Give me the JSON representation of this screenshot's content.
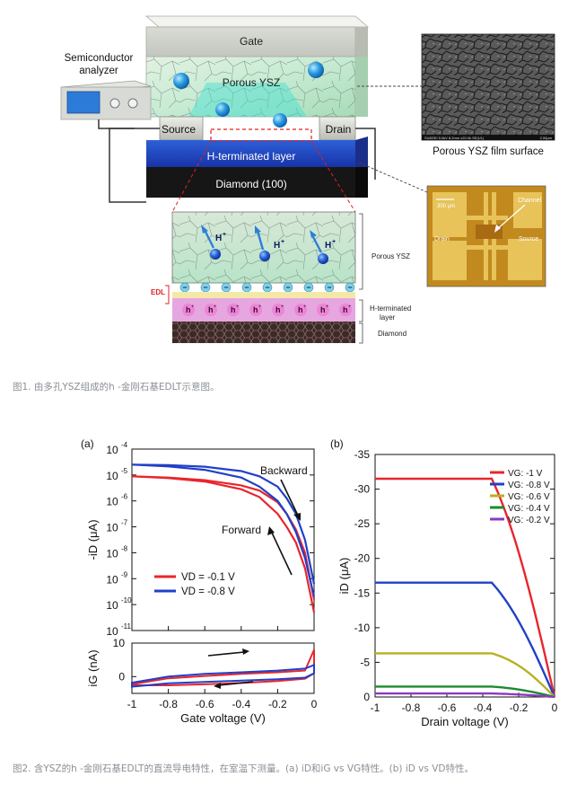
{
  "figure1": {
    "gate_label": "Gate",
    "porous_label": "Porous YSZ",
    "source_label": "Source",
    "drain_label": "Drain",
    "hlayer_label": "H-terminated layer",
    "diamond_label": "Diamond (100)",
    "analyzer_label_1": "Semiconductor",
    "analyzer_label_2": "analyzer",
    "sem_caption": "Porous YSZ film surface",
    "sem_footer_left": "SU8230 5.0kV 8.2mm x20.0k SE(UL)",
    "sem_footer_right": "2.00μm",
    "optical": {
      "scale": "300 μm",
      "channel": "Channel",
      "drain": "Drain",
      "source": "Source"
    },
    "zoom": {
      "h_plus": "H",
      "h_plus_sup": "+",
      "edl": "EDL",
      "minus": "−",
      "h_hole": "h",
      "h_hole_sup": "+",
      "right_porous": "Porous YSZ",
      "right_hlayer_1": "H-terminated",
      "right_hlayer_2": "layer",
      "right_diamond": "Diamond"
    }
  },
  "caption1": "图1. 由多孔YSZ组成的h -金刚石基EDLT示意图。",
  "caption2": "图2. 含YSZ的h -金刚石基EDLT的直流导电特性，在室温下测量。(a) iD和iG vs VG特性。(b) iD vs VD特性。",
  "chart_data": [
    {
      "panel": "(a)",
      "type": "line",
      "xlabel": "Gate voltage (V)",
      "ylabel": "-iD (μA)",
      "yscale": "log",
      "xlim": [
        -1,
        0
      ],
      "ylim_exponent": [
        -11,
        -4
      ],
      "x_ticks": [
        "-1",
        "-0.8",
        "-0.6",
        "-0.4",
        "-0.2",
        "0"
      ],
      "y_tick_exponents": [
        "-4",
        "-5",
        "-6",
        "-7",
        "-8",
        "-9",
        "-10",
        "-11"
      ],
      "annotations": [
        "Backward",
        "Forward"
      ],
      "series": [
        {
          "name": "VD = -0.1 V",
          "color": "#e8262c",
          "forward_x": [
            -1,
            -0.8,
            -0.6,
            -0.4,
            -0.3,
            -0.2,
            -0.15,
            -0.1,
            -0.05,
            0
          ],
          "forward_log": [
            -5.05,
            -5.12,
            -5.25,
            -5.55,
            -5.85,
            -6.5,
            -7.0,
            -7.6,
            -8.6,
            -10.3
          ],
          "backward_x": [
            -1,
            -0.8,
            -0.6,
            -0.4,
            -0.3,
            -0.2,
            -0.15,
            -0.1,
            -0.05,
            0
          ],
          "backward_log": [
            -5.05,
            -5.1,
            -5.2,
            -5.4,
            -5.6,
            -6.05,
            -6.5,
            -7.1,
            -8.0,
            -9.8
          ]
        },
        {
          "name": "VD = -0.8 V",
          "color": "#2140c8",
          "forward_x": [
            -1,
            -0.8,
            -0.6,
            -0.4,
            -0.3,
            -0.2,
            -0.15,
            -0.1,
            -0.05,
            0
          ],
          "forward_log": [
            -4.6,
            -4.67,
            -4.8,
            -5.1,
            -5.45,
            -6.0,
            -6.5,
            -7.2,
            -8.2,
            -9.7
          ],
          "backward_x": [
            -1,
            -0.8,
            -0.6,
            -0.4,
            -0.3,
            -0.2,
            -0.15,
            -0.1,
            -0.05,
            0
          ],
          "backward_log": [
            -4.6,
            -4.62,
            -4.68,
            -4.85,
            -5.05,
            -5.45,
            -5.9,
            -6.5,
            -7.5,
            -9.2
          ]
        }
      ],
      "legend": [
        "VD = -0.1 V",
        "VD = -0.8 V"
      ],
      "legend_position": "lower-left"
    },
    {
      "panel": "(a) lower",
      "type": "line",
      "xlabel": "Gate voltage (V)",
      "ylabel": "iG (nA)",
      "xlim": [
        -1,
        0
      ],
      "ylim": [
        -5,
        10
      ],
      "y_ticks": [
        "10",
        "0"
      ],
      "series": [
        {
          "name": "VD = -0.1 V",
          "color": "#e8262c",
          "upper": [
            [
              -1,
              -2.3
            ],
            [
              -0.8,
              -0.5
            ],
            [
              -0.6,
              0.2
            ],
            [
              -0.4,
              0.8
            ],
            [
              -0.2,
              1.3
            ],
            [
              -0.05,
              1.8
            ],
            [
              0,
              8
            ]
          ],
          "lower": [
            [
              -1,
              -2.6
            ],
            [
              -0.8,
              -2.6
            ],
            [
              -0.6,
              -2.3
            ],
            [
              -0.4,
              -1.9
            ],
            [
              -0.2,
              -1.3
            ],
            [
              -0.05,
              -0.6
            ],
            [
              0,
              1.0
            ]
          ]
        },
        {
          "name": "VD = -0.8 V",
          "color": "#2140c8",
          "upper": [
            [
              -1,
              -1.8
            ],
            [
              -0.8,
              0.0
            ],
            [
              -0.6,
              0.8
            ],
            [
              -0.4,
              1.3
            ],
            [
              -0.2,
              1.8
            ],
            [
              -0.05,
              2.4
            ],
            [
              0,
              3.5
            ]
          ],
          "lower": [
            [
              -1,
              -3.0
            ],
            [
              -0.8,
              -2.0
            ],
            [
              -0.6,
              -1.6
            ],
            [
              -0.4,
              -1.2
            ],
            [
              -0.2,
              -0.8
            ],
            [
              -0.05,
              -0.3
            ],
            [
              0,
              1.0
            ]
          ]
        }
      ]
    },
    {
      "panel": "(b)",
      "type": "line",
      "xlabel": "Drain voltage (V)",
      "ylabel": "iD (μA)",
      "xlim": [
        -1,
        0
      ],
      "ylim": [
        0,
        -35
      ],
      "x_ticks": [
        "-1",
        "-0.8",
        "-0.6",
        "-0.4",
        "-0.2",
        "0"
      ],
      "y_ticks": [
        "-35",
        "-30",
        "-25",
        "-20",
        "-15",
        "-10",
        "-5",
        "0"
      ],
      "legend_position": "top-right",
      "series": [
        {
          "name": "VG: -1 V",
          "color": "#e8262c",
          "sat": -31.5
        },
        {
          "name": "VG: -0.8 V",
          "color": "#2140c8",
          "sat": -16.5
        },
        {
          "name": "VG: -0.6 V",
          "color": "#b8b020",
          "sat": -6.3
        },
        {
          "name": "VG: -0.4 V",
          "color": "#1e8a2e",
          "sat": -1.5
        },
        {
          "name": "VG: -0.2 V",
          "color": "#8a3ac0",
          "sat": -0.5
        }
      ],
      "legend_labels": [
        "V",
        "G",
        ": -1 V",
        ": -0.8 V",
        ": -0.6 V",
        ": -0.4 V",
        ": -0.2 V"
      ]
    }
  ]
}
